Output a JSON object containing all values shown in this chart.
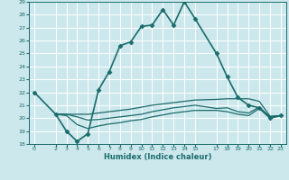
{
  "xlabel": "Humidex (Indice chaleur)",
  "bg_color": "#cce8ed",
  "line_color": "#1a6b6b",
  "grid_color": "#ffffff",
  "xlim": [
    -0.5,
    23.5
  ],
  "ylim": [
    18,
    29
  ],
  "xtick_positions": [
    0,
    2,
    3,
    4,
    5,
    6,
    7,
    8,
    9,
    10,
    11,
    12,
    13,
    14,
    15,
    17,
    18,
    19,
    20,
    21,
    22,
    23
  ],
  "xtick_labels": [
    "0",
    "2",
    "3",
    "4",
    "5",
    "6",
    "7",
    "8",
    "9",
    "10",
    "11",
    "12",
    "13",
    "14",
    "15",
    "17",
    "18",
    "19",
    "20",
    "21",
    "22",
    "23"
  ],
  "yticks": [
    18,
    19,
    20,
    21,
    22,
    23,
    24,
    25,
    26,
    27,
    28,
    29
  ],
  "series": [
    {
      "x": [
        0,
        2,
        3,
        4,
        5,
        6,
        7,
        8,
        9,
        10,
        11,
        12,
        13,
        14,
        15,
        17,
        18,
        19,
        20,
        21,
        22,
        23
      ],
      "y": [
        22.0,
        20.3,
        19.0,
        18.2,
        18.8,
        22.2,
        23.6,
        25.6,
        25.9,
        27.1,
        27.2,
        28.4,
        27.2,
        29.0,
        27.7,
        25.0,
        23.2,
        21.6,
        21.0,
        20.8,
        20.0,
        20.2
      ],
      "marker": "D",
      "markersize": 2.5,
      "linewidth": 1.2
    },
    {
      "x": [
        2,
        3,
        4,
        5,
        6,
        7,
        8,
        9,
        10,
        11,
        12,
        13,
        14,
        15,
        17,
        18,
        19,
        20,
        21,
        22,
        23
      ],
      "y": [
        20.3,
        20.3,
        20.3,
        20.3,
        20.4,
        20.5,
        20.6,
        20.7,
        20.85,
        21.0,
        21.1,
        21.2,
        21.3,
        21.4,
        21.45,
        21.5,
        21.5,
        21.5,
        21.3,
        20.15,
        20.2
      ],
      "marker": null,
      "linewidth": 0.9
    },
    {
      "x": [
        2,
        3,
        4,
        5,
        6,
        7,
        8,
        9,
        10,
        11,
        12,
        13,
        14,
        15,
        17,
        18,
        19,
        20,
        21,
        22,
        23
      ],
      "y": [
        20.3,
        20.3,
        20.1,
        19.85,
        19.9,
        20.0,
        20.1,
        20.2,
        20.3,
        20.5,
        20.65,
        20.8,
        20.9,
        21.0,
        20.75,
        20.8,
        20.5,
        20.4,
        20.85,
        20.1,
        20.2
      ],
      "marker": null,
      "linewidth": 0.9
    },
    {
      "x": [
        2,
        3,
        4,
        5,
        6,
        7,
        8,
        9,
        10,
        11,
        12,
        13,
        14,
        15,
        17,
        18,
        19,
        20,
        21,
        22,
        23
      ],
      "y": [
        20.3,
        20.2,
        19.5,
        19.2,
        19.4,
        19.55,
        19.65,
        19.8,
        19.9,
        20.1,
        20.25,
        20.4,
        20.5,
        20.6,
        20.6,
        20.5,
        20.3,
        20.2,
        20.75,
        20.0,
        20.2
      ],
      "marker": null,
      "linewidth": 0.9
    }
  ]
}
